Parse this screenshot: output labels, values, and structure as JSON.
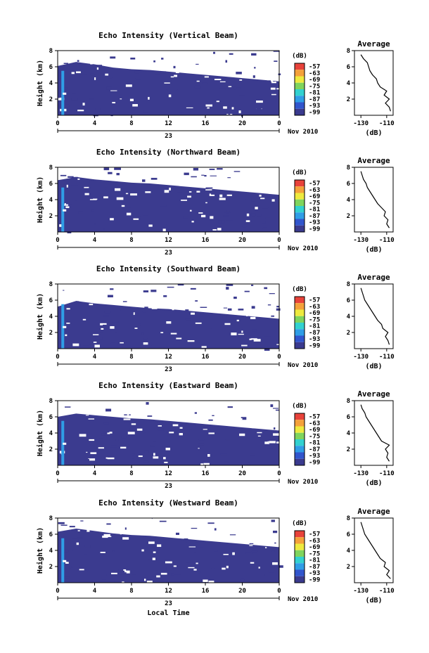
{
  "chart_data": [
    {
      "type": "heatmap",
      "title": "Echo Intensity (Vertical Beam)",
      "ylabel": "Height (km)",
      "x_ticks": [
        "0",
        "4",
        "8",
        "12",
        "16",
        "20",
        "0"
      ],
      "x_range": [
        0,
        24
      ],
      "y_ticks": [
        "2",
        "4",
        "6",
        "8"
      ],
      "y_range": [
        0,
        8
      ],
      "date_text": "23",
      "date_suffix": "Nov 2010",
      "colorbar": {
        "unit": "(dB)",
        "levels": [
          "-57",
          "-63",
          "-69",
          "-75",
          "-81",
          "-87",
          "-93",
          "-99"
        ]
      },
      "echo_top_km": [
        6.1,
        6.6,
        6.3,
        5.9,
        5.7,
        5.6,
        5.4,
        5.2,
        5.0,
        4.8,
        4.6,
        4.4,
        4.2
      ],
      "average": {
        "title": "Average",
        "xlabel": "(dB)",
        "x_ticks": [
          "-130",
          "-110"
        ],
        "y_ticks": [
          "2",
          "4",
          "6",
          "8"
        ],
        "profile": [
          [
            -107,
            0.5
          ],
          [
            -108,
            1.0
          ],
          [
            -111,
            1.5
          ],
          [
            -108,
            2.0
          ],
          [
            -112,
            2.5
          ],
          [
            -110,
            3.0
          ],
          [
            -115,
            3.5
          ],
          [
            -117,
            4.0
          ],
          [
            -118,
            4.5
          ],
          [
            -121,
            5.0
          ],
          [
            -123,
            5.5
          ],
          [
            -124,
            6.0
          ],
          [
            -125,
            6.5
          ],
          [
            -128,
            7.0
          ],
          [
            -130,
            7.5
          ]
        ]
      }
    },
    {
      "type": "heatmap",
      "title": "Echo Intensity (Northward Beam)",
      "ylabel": "Height (km)",
      "x_ticks": [
        "0",
        "4",
        "8",
        "12",
        "16",
        "20",
        "0"
      ],
      "x_range": [
        0,
        24
      ],
      "y_ticks": [
        "2",
        "4",
        "6",
        "8"
      ],
      "y_range": [
        0,
        8
      ],
      "date_text": "23",
      "date_suffix": "Nov 2010",
      "colorbar": {
        "unit": "(dB)",
        "levels": [
          "-57",
          "-63",
          "-69",
          "-75",
          "-81",
          "-87",
          "-93",
          "-99"
        ]
      },
      "echo_top_km": [
        6.4,
        6.8,
        6.5,
        6.3,
        6.1,
        6.0,
        5.8,
        5.6,
        5.4,
        5.2,
        5.0,
        4.8,
        4.6
      ],
      "average": {
        "title": "Average",
        "xlabel": "(dB)",
        "x_ticks": [
          "-130",
          "-110"
        ],
        "y_ticks": [
          "2",
          "4",
          "6",
          "8"
        ],
        "profile": [
          [
            -108,
            0.5
          ],
          [
            -110,
            1.0
          ],
          [
            -109,
            1.5
          ],
          [
            -112,
            2.0
          ],
          [
            -111,
            2.5
          ],
          [
            -114,
            3.0
          ],
          [
            -117,
            3.5
          ],
          [
            -119,
            4.0
          ],
          [
            -121,
            4.5
          ],
          [
            -123,
            5.0
          ],
          [
            -125,
            5.5
          ],
          [
            -126,
            6.0
          ],
          [
            -128,
            6.5
          ],
          [
            -129,
            7.0
          ],
          [
            -130,
            7.5
          ]
        ]
      }
    },
    {
      "type": "heatmap",
      "title": "Echo Intensity (Southward Beam)",
      "ylabel": "Height (km)",
      "x_ticks": [
        "0",
        "4",
        "8",
        "12",
        "16",
        "20",
        "0"
      ],
      "x_range": [
        0,
        24
      ],
      "y_ticks": [
        "2",
        "4",
        "6",
        "8"
      ],
      "y_range": [
        0,
        8
      ],
      "date_text": "23",
      "date_suffix": "Nov 2010",
      "colorbar": {
        "unit": "(dB)",
        "levels": [
          "-57",
          "-63",
          "-69",
          "-75",
          "-81",
          "-87",
          "-93",
          "-99"
        ]
      },
      "echo_top_km": [
        5.2,
        5.9,
        5.6,
        5.4,
        5.2,
        5.0,
        4.9,
        4.7,
        4.5,
        4.3,
        4.1,
        3.9,
        3.7
      ],
      "average": {
        "title": "Average",
        "xlabel": "(dB)",
        "x_ticks": [
          "-130",
          "-110"
        ],
        "y_ticks": [
          "2",
          "4",
          "6",
          "8"
        ],
        "profile": [
          [
            -108,
            0.5
          ],
          [
            -109,
            1.0
          ],
          [
            -111,
            1.5
          ],
          [
            -109,
            2.0
          ],
          [
            -113,
            2.5
          ],
          [
            -114,
            3.0
          ],
          [
            -117,
            3.5
          ],
          [
            -119,
            4.0
          ],
          [
            -121,
            4.5
          ],
          [
            -123,
            5.0
          ],
          [
            -125,
            5.5
          ],
          [
            -127,
            6.0
          ],
          [
            -128,
            6.5
          ],
          [
            -129,
            7.0
          ],
          [
            -130,
            7.5
          ]
        ]
      }
    },
    {
      "type": "heatmap",
      "title": "Echo Intensity (Eastward Beam)",
      "ylabel": "Height (km)",
      "x_ticks": [
        "0",
        "4",
        "8",
        "12",
        "16",
        "20",
        "0"
      ],
      "x_range": [
        0,
        24
      ],
      "y_ticks": [
        "2",
        "4",
        "6",
        "8"
      ],
      "y_range": [
        0,
        8
      ],
      "date_text": "23",
      "date_suffix": "Nov 2010",
      "colorbar": {
        "unit": "(dB)",
        "levels": [
          "-57",
          "-63",
          "-69",
          "-75",
          "-81",
          "-87",
          "-93",
          "-99"
        ]
      },
      "echo_top_km": [
        6.0,
        6.4,
        6.2,
        6.0,
        5.8,
        5.7,
        5.5,
        5.3,
        5.1,
        4.9,
        4.7,
        4.5,
        4.3
      ],
      "average": {
        "title": "Average",
        "xlabel": "(dB)",
        "x_ticks": [
          "-130",
          "-110"
        ],
        "y_ticks": [
          "2",
          "4",
          "6",
          "8"
        ],
        "profile": [
          [
            -108,
            0.5
          ],
          [
            -110,
            1.0
          ],
          [
            -109,
            1.5
          ],
          [
            -111,
            2.0
          ],
          [
            -108,
            2.5
          ],
          [
            -114,
            3.0
          ],
          [
            -116,
            3.5
          ],
          [
            -118,
            4.0
          ],
          [
            -120,
            4.5
          ],
          [
            -122,
            5.0
          ],
          [
            -124,
            5.5
          ],
          [
            -126,
            6.0
          ],
          [
            -127,
            6.5
          ],
          [
            -129,
            7.0
          ],
          [
            -130,
            7.5
          ]
        ]
      }
    },
    {
      "type": "heatmap",
      "title": "Echo Intensity (Westward Beam)",
      "ylabel": "Height (km)",
      "x_ticks": [
        "0",
        "4",
        "8",
        "12",
        "16",
        "20",
        "0"
      ],
      "x_range": [
        0,
        24
      ],
      "y_ticks": [
        "2",
        "4",
        "6",
        "8"
      ],
      "y_range": [
        0,
        8
      ],
      "date_text": "23",
      "date_suffix": "Nov 2010",
      "xlabel": "Local Time",
      "colorbar": {
        "unit": "(dB)",
        "levels": [
          "-57",
          "-63",
          "-69",
          "-75",
          "-81",
          "-87",
          "-93",
          "-99"
        ]
      },
      "echo_top_km": [
        6.3,
        6.7,
        6.4,
        6.1,
        5.9,
        5.8,
        5.6,
        5.4,
        5.2,
        5.0,
        4.8,
        4.6,
        4.4
      ],
      "average": {
        "title": "Average",
        "xlabel": "(dB)",
        "x_ticks": [
          "-130",
          "-110"
        ],
        "y_ticks": [
          "2",
          "4",
          "6",
          "8"
        ],
        "profile": [
          [
            -107,
            0.5
          ],
          [
            -110,
            1.0
          ],
          [
            -108,
            1.5
          ],
          [
            -112,
            2.0
          ],
          [
            -111,
            2.5
          ],
          [
            -115,
            3.0
          ],
          [
            -117,
            3.5
          ],
          [
            -119,
            4.0
          ],
          [
            -121,
            4.5
          ],
          [
            -123,
            5.0
          ],
          [
            -125,
            5.5
          ],
          [
            -127,
            6.0
          ],
          [
            -128,
            6.5
          ],
          [
            -129,
            7.0
          ],
          [
            -130,
            7.5
          ]
        ]
      }
    }
  ],
  "colors": {
    "background_echo": "#3b3b8f",
    "colorbar": [
      "#e8423a",
      "#f4a13a",
      "#eeea3e",
      "#7fd45d",
      "#32d1d0",
      "#2f9de6",
      "#3155cc",
      "#3a3a8e"
    ]
  }
}
